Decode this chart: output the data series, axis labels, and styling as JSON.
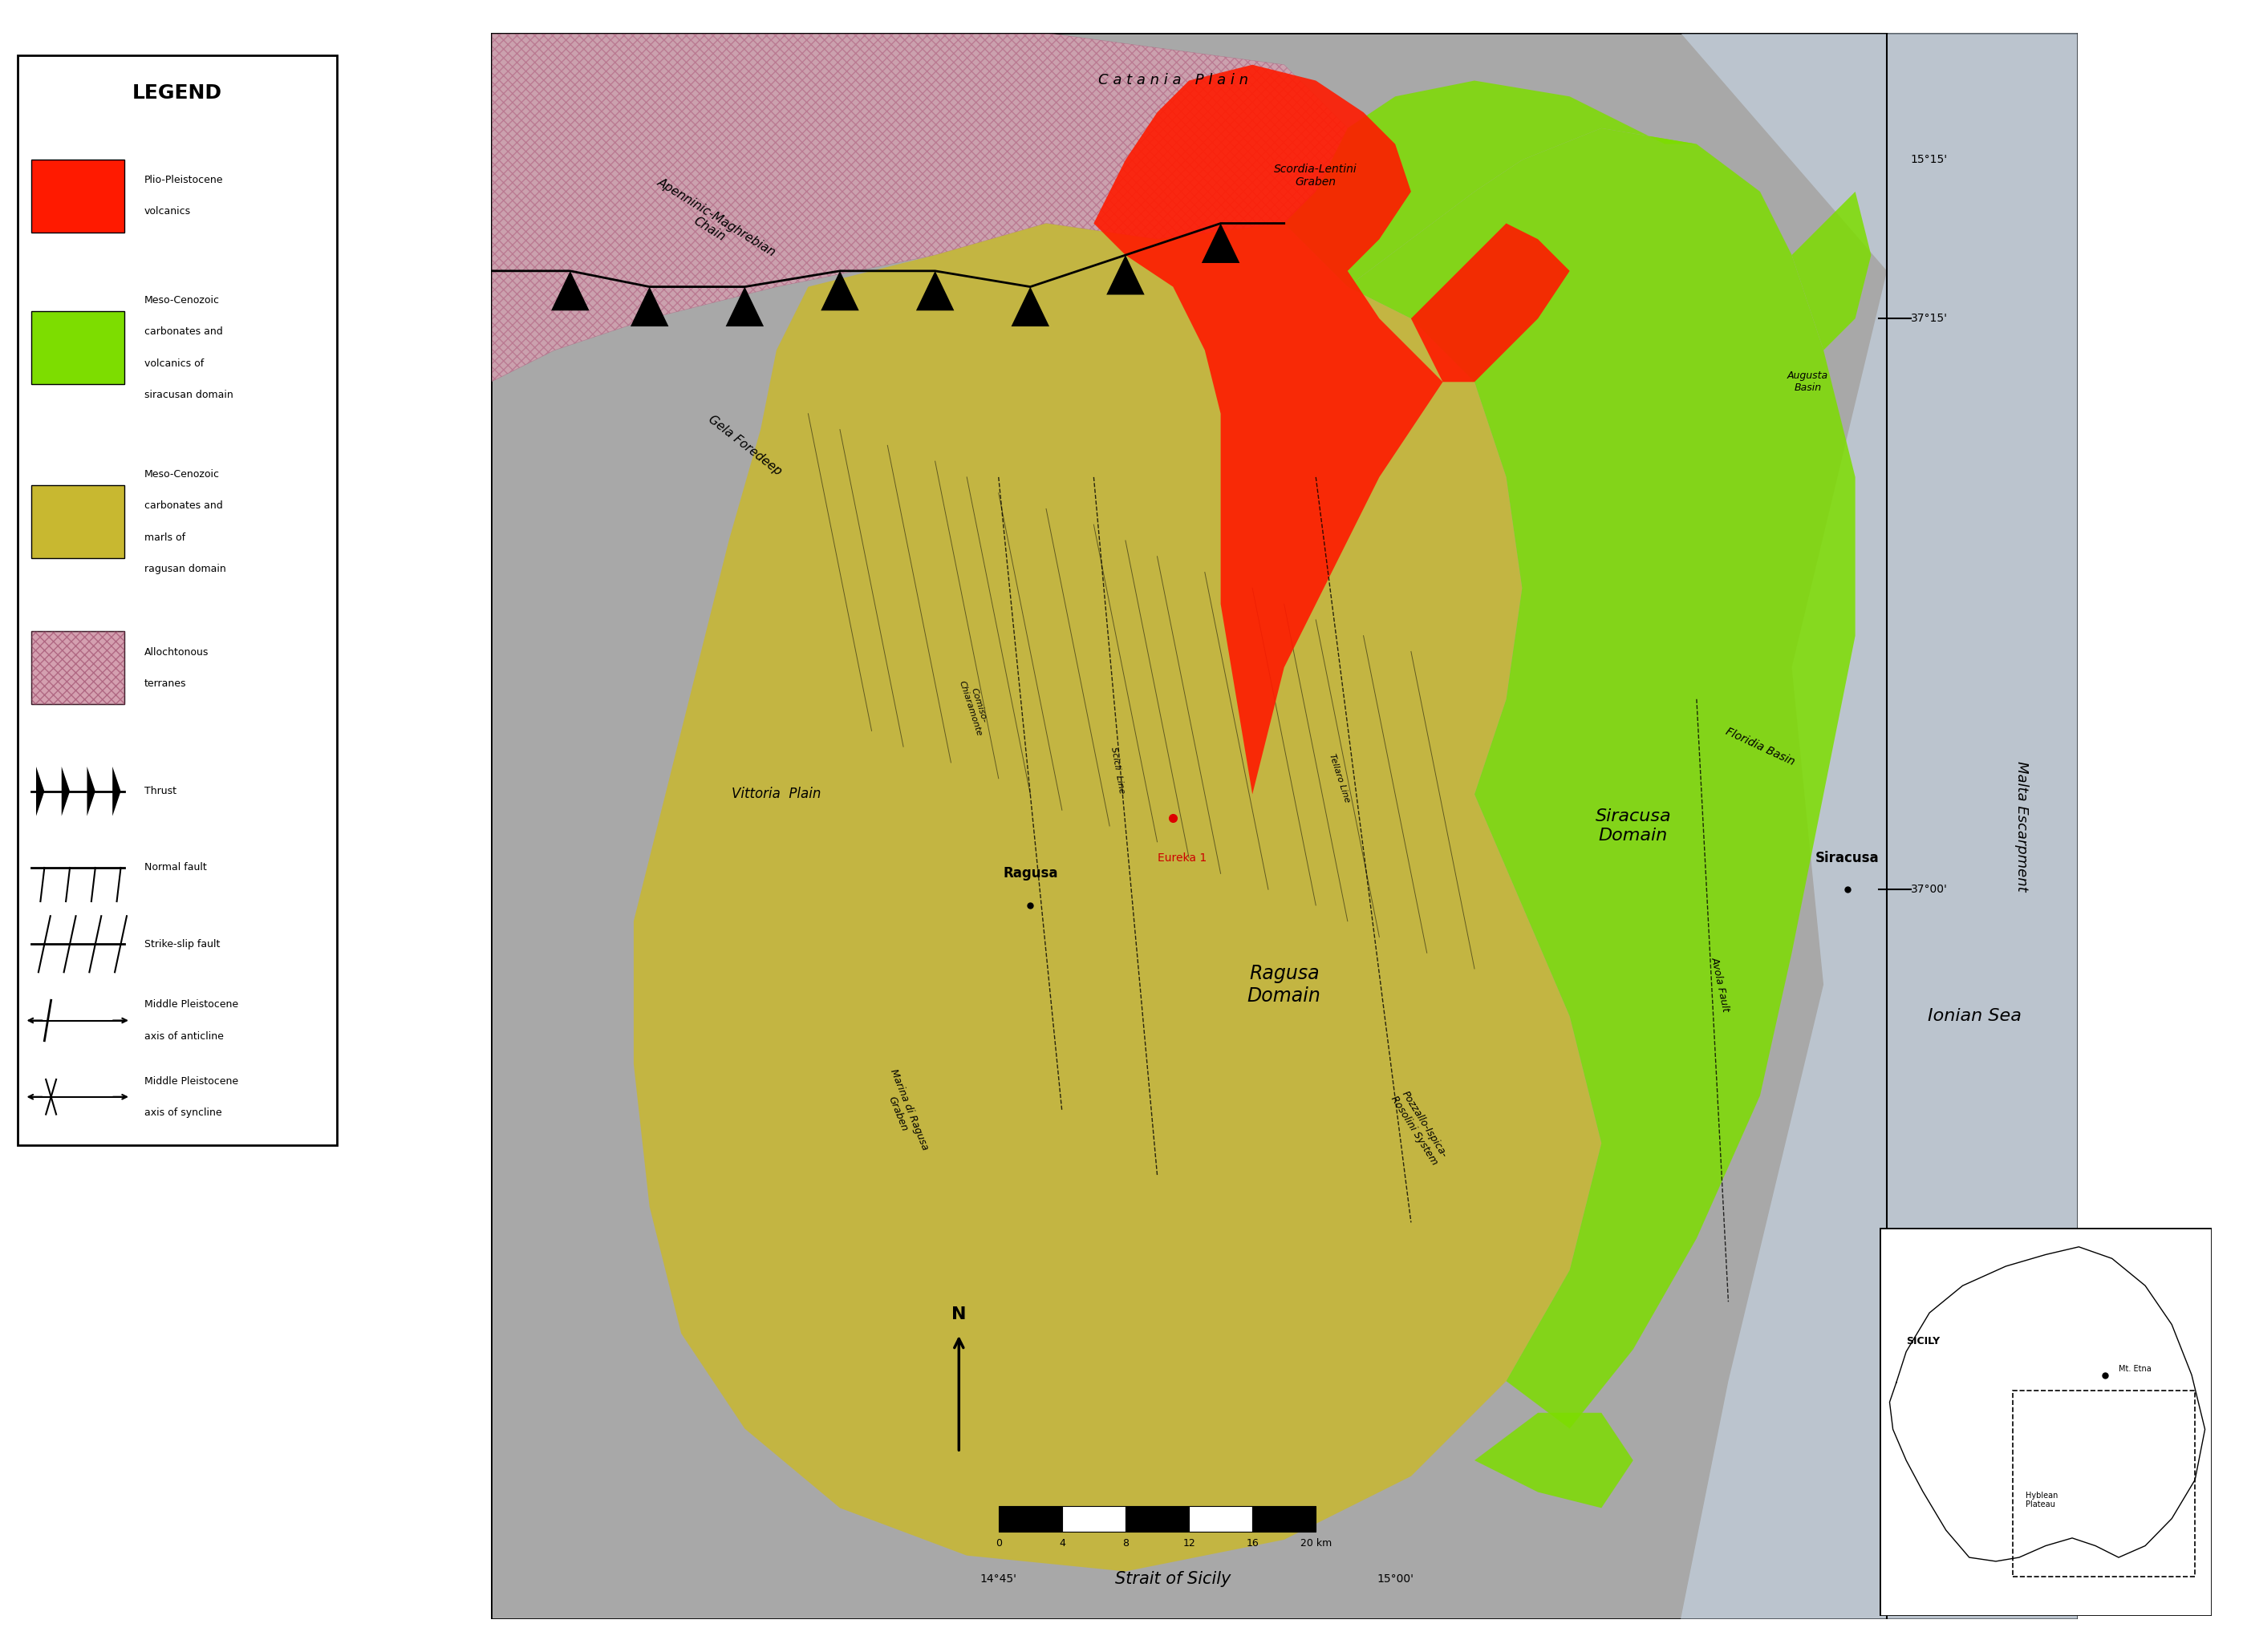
{
  "fig_width": 27.96,
  "fig_height": 20.6,
  "bg_color": "#ffffff",
  "map_bg_color": "#a8a8a8",
  "ionian_sea_color": "#d8e8f0",
  "legend_items": [
    {
      "label": "Plio-Pleistocene\nvolcanics",
      "color": "#ff1a00"
    },
    {
      "label": "Meso-Cenozoic\ncarbonates and\nvolcanics of\nsiracusan domain",
      "color": "#7ddd00"
    },
    {
      "label": "Meso-Cenozoic\ncarbonates and\nmarls of\nragusan domain",
      "color": "#c8b830"
    },
    {
      "label": "Allochtonous\nterranes",
      "color": "#d4a0b0"
    }
  ],
  "legend_line_items": [
    {
      "label": "Thrust",
      "style": "thrust"
    },
    {
      "label": "Normal fault",
      "style": "normal_fault"
    },
    {
      "label": "Strike-slip fault",
      "style": "strike_slip"
    },
    {
      "label": "Middle Pleistocene\naxis of anticline",
      "style": "anticline"
    },
    {
      "label": "Middle Pleistocene\naxis of syncline",
      "style": "syncline"
    }
  ],
  "scale_bar_labels": [
    "0",
    "4",
    "8",
    "12",
    "16",
    "20 km"
  ],
  "alloch_color": "#d4a0b0",
  "yellow_color": "#c8b830",
  "green_color": "#7ddd00",
  "red_color": "#ff1a00",
  "grey_color": "#a0a0a0"
}
